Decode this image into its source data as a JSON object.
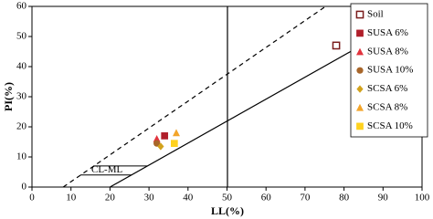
{
  "chart_data": {
    "type": "scatter",
    "x_label": "LL(%)",
    "y_label": "PI(%)",
    "xlim": [
      0,
      100
    ],
    "xticks": [
      0,
      10,
      20,
      30,
      40,
      50,
      60,
      70,
      80,
      90,
      100
    ],
    "ylim": [
      0,
      60
    ],
    "yticks": [
      0,
      10,
      20,
      30,
      40,
      50,
      60
    ],
    "annotation": "CL-ML",
    "legend": "upper right",
    "series": [
      {
        "name": "Soil",
        "color": "#7a1c1c",
        "marker": "square-open",
        "x": [
          78
        ],
        "values": [
          47
        ]
      },
      {
        "name": "SUSA 6%",
        "color": "#b01e2a",
        "marker": "square",
        "x": [
          34
        ],
        "values": [
          17
        ]
      },
      {
        "name": "SUSA 8%",
        "color": "#e2343e",
        "marker": "triangle",
        "x": [
          32
        ],
        "values": [
          16
        ]
      },
      {
        "name": "SUSA 10%",
        "color": "#a8662a",
        "marker": "circle",
        "x": [
          32
        ],
        "values": [
          14.5
        ]
      },
      {
        "name": "SCSA 6%",
        "color": "#d2a21c",
        "marker": "diamond",
        "x": [
          33
        ],
        "values": [
          13.5
        ]
      },
      {
        "name": "SCSA 8%",
        "color": "#f3a52a",
        "marker": "triangle",
        "x": [
          37
        ],
        "values": [
          18
        ]
      },
      {
        "name": "SCSA 10%",
        "color": "#ffd21f",
        "marker": "square",
        "x": [
          36.5
        ],
        "values": [
          14.5
        ]
      }
    ]
  }
}
